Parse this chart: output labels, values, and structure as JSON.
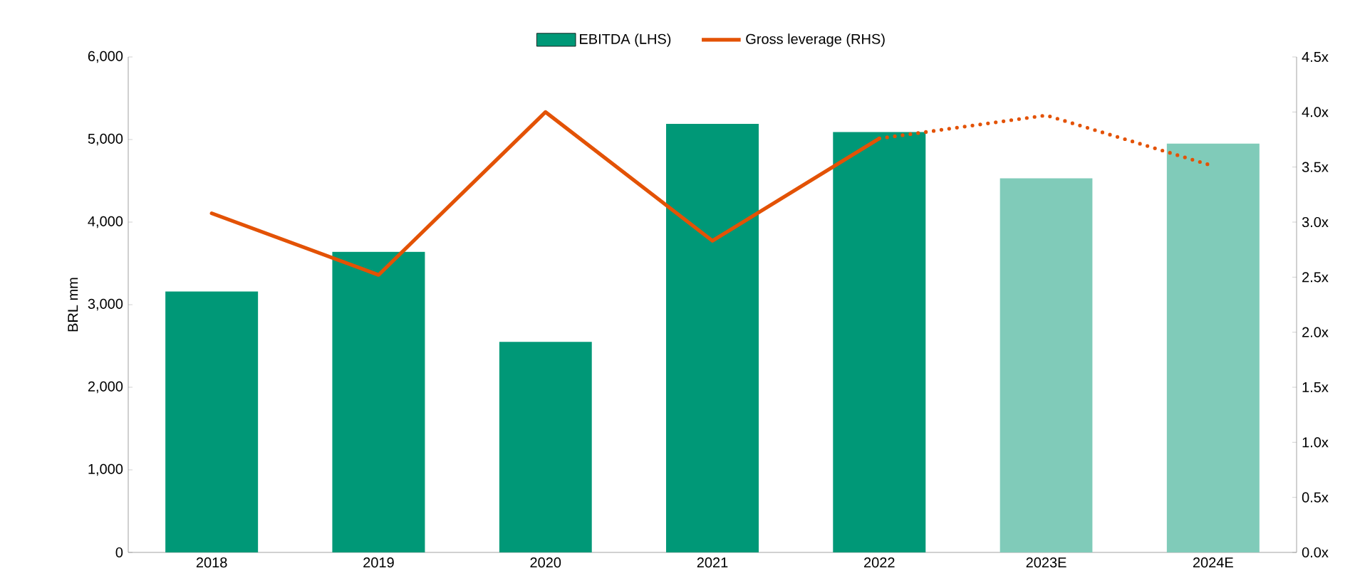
{
  "chart_data": {
    "type": "bar",
    "categories": [
      "2018",
      "2019",
      "2020",
      "2021",
      "2022",
      "2023E",
      "2024E"
    ],
    "series": [
      {
        "name": "EBITDA (LHS)",
        "colors": [
          "#009877",
          "#009877",
          "#009877",
          "#009877",
          "#009877",
          "#80cbb9",
          "#80cbb9"
        ],
        "values": [
          3160,
          3640,
          2550,
          5190,
          5090,
          4530,
          4950
        ]
      },
      {
        "name": "Gross leverage  (RHS)",
        "type": "line",
        "axis": "y2",
        "color": "#e35205",
        "line_style": "solid",
        "values": [
          3.08,
          2.52,
          4.0,
          2.83,
          3.76,
          null,
          null
        ]
      },
      {
        "type": "line",
        "axis": "y2",
        "color": "#e35205",
        "line_style": "dotted",
        "values": [
          null,
          null,
          null,
          null,
          3.76,
          3.97,
          3.51
        ]
      }
    ],
    "ylabel": "BRL mm",
    "ylim": [
      0,
      6000
    ],
    "yticks": [
      0,
      {
        "value": 1000,
        "label": "1,000"
      },
      {
        "value": 2000,
        "label": "2,000"
      },
      {
        "value": 3000,
        "label": "3,000"
      },
      {
        "value": 4000,
        "label": "4,000"
      },
      {
        "value": 5000,
        "label": "5,000"
      },
      {
        "value": 6000,
        "label": "6,000"
      }
    ],
    "y2lim": [
      0,
      4.5
    ],
    "y2ticks": [
      {
        "value": 0,
        "label": "0.0x"
      },
      {
        "value": 0.5,
        "label": "0.5x"
      },
      {
        "value": 1,
        "label": "1.0x"
      },
      {
        "value": 1.5,
        "label": "1.5x"
      },
      {
        "value": 2,
        "label": "2.0x"
      },
      {
        "value": 2.5,
        "label": "2.5x"
      },
      {
        "value": 3,
        "label": "3.0x"
      },
      {
        "value": 3.5,
        "label": "3.5x"
      },
      {
        "value": 4,
        "label": "4.0x"
      },
      {
        "value": 4.5,
        "label": "4.5x"
      }
    ],
    "legend": "top"
  }
}
